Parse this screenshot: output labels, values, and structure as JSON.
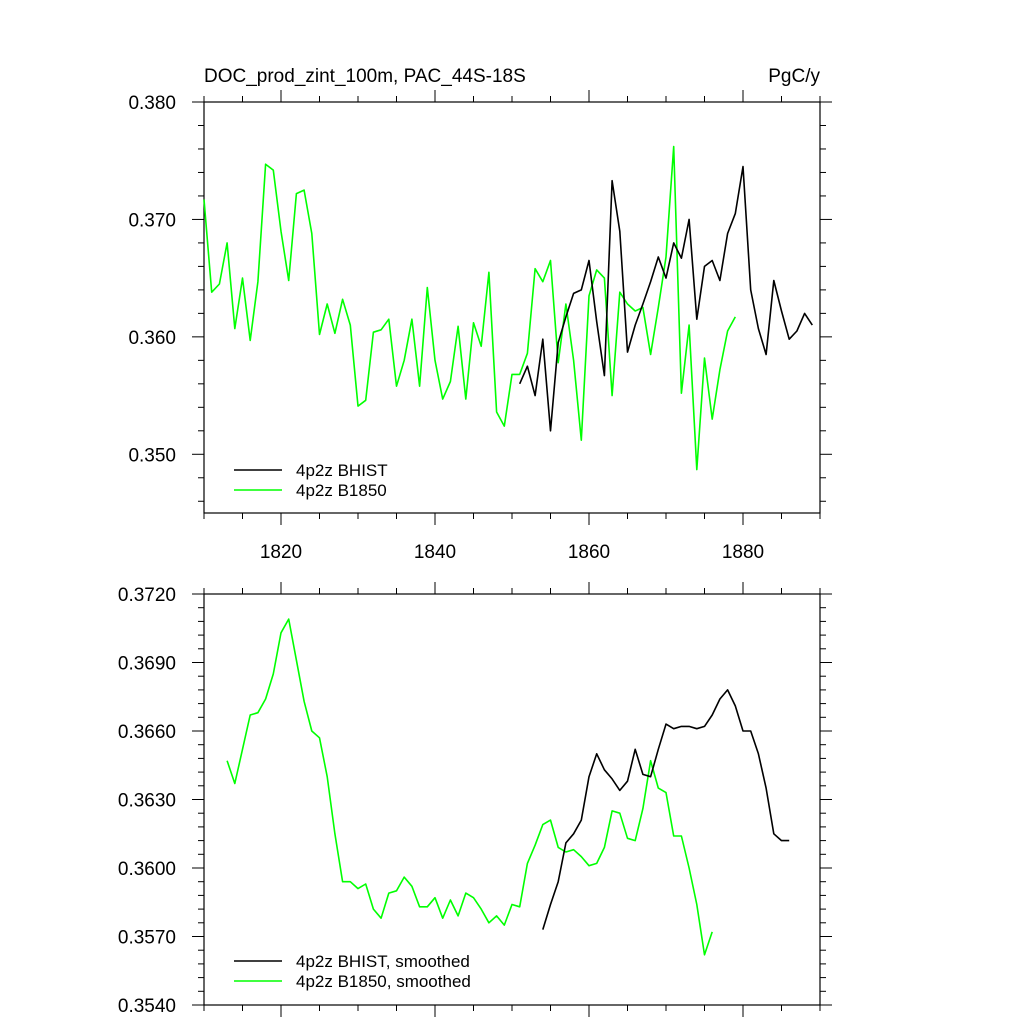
{
  "colors": {
    "bhist": "#000000",
    "b1850": "#00ff00",
    "axis": "#000000"
  },
  "chart_data": [
    {
      "type": "line",
      "title": "DOC_prod_zint_100m, PAC_44S-18S",
      "units": "PgC/y",
      "xlim": [
        1810,
        1890
      ],
      "ylim": [
        0.345,
        0.38
      ],
      "xticks": [
        "1820",
        "1840",
        "1860",
        "1880"
      ],
      "xtick_values": [
        1820,
        1840,
        1860,
        1880
      ],
      "yticks": [
        "0.350",
        "0.360",
        "0.370",
        "0.380"
      ],
      "ytick_values": [
        0.35,
        0.36,
        0.37,
        0.38
      ],
      "legend_placement": "bottom-left",
      "series": [
        {
          "name": "4p2z BHIST",
          "color": "#000000",
          "x": [
            1851,
            1852,
            1853,
            1854,
            1855,
            1856,
            1857,
            1858,
            1859,
            1860,
            1861,
            1862,
            1863,
            1864,
            1865,
            1866,
            1867,
            1868,
            1869,
            1870,
            1871,
            1872,
            1873,
            1874,
            1875,
            1876,
            1877,
            1878,
            1879,
            1880,
            1881,
            1882,
            1883,
            1884,
            1885,
            1886,
            1887,
            1888,
            1889
          ],
          "y": [
            0.356,
            0.3575,
            0.355,
            0.3598,
            0.352,
            0.3595,
            0.3617,
            0.3637,
            0.364,
            0.3665,
            0.3613,
            0.3567,
            0.3733,
            0.369,
            0.3587,
            0.361,
            0.3628,
            0.3647,
            0.3668,
            0.365,
            0.368,
            0.3667,
            0.37,
            0.3615,
            0.366,
            0.3665,
            0.3648,
            0.3688,
            0.3705,
            0.3745,
            0.364,
            0.3607,
            0.3585,
            0.3648,
            0.3622,
            0.3598,
            0.3605,
            0.362,
            0.361
          ]
        },
        {
          "name": "4p2z B1850",
          "color": "#00ff00",
          "x": [
            1810,
            1811,
            1812,
            1813,
            1814,
            1815,
            1816,
            1817,
            1818,
            1819,
            1820,
            1821,
            1822,
            1823,
            1824,
            1825,
            1826,
            1827,
            1828,
            1829,
            1830,
            1831,
            1832,
            1833,
            1834,
            1835,
            1836,
            1837,
            1838,
            1839,
            1840,
            1841,
            1842,
            1843,
            1844,
            1845,
            1846,
            1847,
            1848,
            1849,
            1850,
            1851,
            1852,
            1853,
            1854,
            1855,
            1856,
            1857,
            1858,
            1859,
            1860,
            1861,
            1862,
            1863,
            1864,
            1865,
            1866,
            1867,
            1868,
            1869,
            1870,
            1871,
            1872,
            1873,
            1874,
            1875,
            1876,
            1877,
            1878,
            1879
          ],
          "y": [
            0.3717,
            0.3638,
            0.3645,
            0.368,
            0.3607,
            0.365,
            0.3597,
            0.3647,
            0.3747,
            0.3742,
            0.369,
            0.3648,
            0.3722,
            0.3725,
            0.3688,
            0.3602,
            0.3628,
            0.3603,
            0.3632,
            0.361,
            0.3541,
            0.3546,
            0.3604,
            0.3606,
            0.3615,
            0.3558,
            0.358,
            0.3615,
            0.3558,
            0.3642,
            0.358,
            0.3547,
            0.3562,
            0.3609,
            0.3547,
            0.3612,
            0.3592,
            0.3655,
            0.3536,
            0.3524,
            0.3568,
            0.3568,
            0.3586,
            0.3658,
            0.3647,
            0.3665,
            0.3578,
            0.3628,
            0.358,
            0.3512,
            0.3635,
            0.3657,
            0.365,
            0.355,
            0.3638,
            0.3628,
            0.3622,
            0.3625,
            0.3585,
            0.3625,
            0.3668,
            0.3762,
            0.3552,
            0.361,
            0.3487,
            0.3582,
            0.353,
            0.3572,
            0.3605,
            0.3617
          ]
        }
      ]
    },
    {
      "type": "line",
      "title": "",
      "xlim": [
        1810,
        1890
      ],
      "ylim": [
        0.354,
        0.372
      ],
      "yticks": [
        "0.3540",
        "0.3570",
        "0.3600",
        "0.3630",
        "0.3660",
        "0.3690",
        "0.3720"
      ],
      "ytick_values": [
        0.354,
        0.357,
        0.36,
        0.363,
        0.366,
        0.369,
        0.372
      ],
      "xtick_values": [
        1820,
        1840,
        1860,
        1880
      ],
      "legend_placement": "bottom-left",
      "series": [
        {
          "name": "4p2z BHIST, smoothed",
          "color": "#000000",
          "x": [
            1854,
            1855,
            1856,
            1857,
            1858,
            1859,
            1860,
            1861,
            1862,
            1863,
            1864,
            1865,
            1866,
            1867,
            1868,
            1869,
            1870,
            1871,
            1872,
            1873,
            1874,
            1875,
            1876,
            1877,
            1878,
            1879,
            1880,
            1881,
            1882,
            1883,
            1884,
            1885,
            1886
          ],
          "y": [
            0.3573,
            0.3584,
            0.3594,
            0.3611,
            0.3615,
            0.3621,
            0.364,
            0.365,
            0.3643,
            0.3639,
            0.3634,
            0.3638,
            0.3652,
            0.3641,
            0.364,
            0.3652,
            0.3663,
            0.3661,
            0.3662,
            0.3662,
            0.3661,
            0.3662,
            0.3667,
            0.3674,
            0.3678,
            0.3671,
            0.366,
            0.366,
            0.365,
            0.3635,
            0.3615,
            0.3612,
            0.3612
          ]
        },
        {
          "name": "4p2z B1850, smoothed",
          "color": "#00ff00",
          "x": [
            1813,
            1814,
            1815,
            1816,
            1817,
            1818,
            1819,
            1820,
            1821,
            1822,
            1823,
            1824,
            1825,
            1826,
            1827,
            1828,
            1829,
            1830,
            1831,
            1832,
            1833,
            1834,
            1835,
            1836,
            1837,
            1838,
            1839,
            1840,
            1841,
            1842,
            1843,
            1844,
            1845,
            1846,
            1847,
            1848,
            1849,
            1850,
            1851,
            1852,
            1853,
            1854,
            1855,
            1856,
            1857,
            1858,
            1859,
            1860,
            1861,
            1862,
            1863,
            1864,
            1865,
            1866,
            1867,
            1868,
            1869,
            1870,
            1871,
            1872,
            1873,
            1874,
            1875,
            1876
          ],
          "y": [
            0.3647,
            0.3637,
            0.3652,
            0.3667,
            0.3668,
            0.3674,
            0.3685,
            0.3703,
            0.3709,
            0.3691,
            0.3673,
            0.366,
            0.3657,
            0.364,
            0.3615,
            0.3594,
            0.3594,
            0.3591,
            0.3593,
            0.3582,
            0.3578,
            0.3589,
            0.359,
            0.3596,
            0.3592,
            0.3583,
            0.3583,
            0.3587,
            0.3578,
            0.3586,
            0.3579,
            0.3589,
            0.3587,
            0.3582,
            0.3576,
            0.3579,
            0.3575,
            0.3584,
            0.3583,
            0.3602,
            0.361,
            0.3619,
            0.3621,
            0.3609,
            0.3607,
            0.3608,
            0.3605,
            0.3601,
            0.3602,
            0.3609,
            0.3625,
            0.3624,
            0.3613,
            0.3612,
            0.3626,
            0.3647,
            0.3635,
            0.3633,
            0.3614,
            0.3614,
            0.36,
            0.3584,
            0.3562,
            0.3572
          ]
        }
      ]
    }
  ]
}
